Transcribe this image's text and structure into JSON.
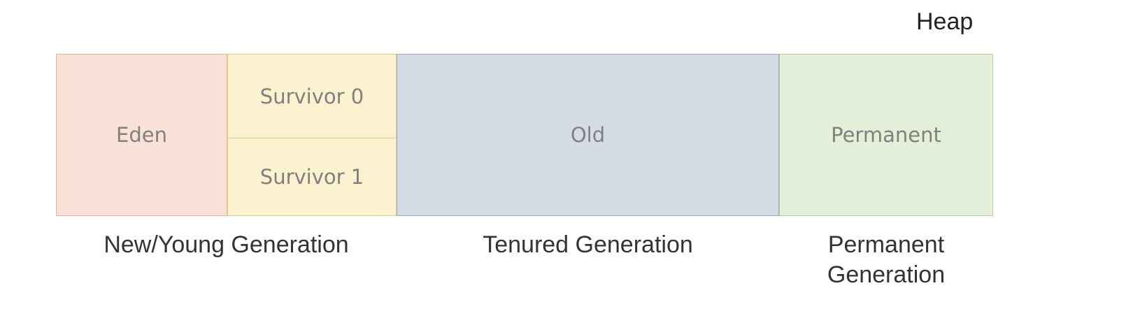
{
  "heap": {
    "title": "Heap"
  },
  "regions": {
    "eden": {
      "label": "Eden",
      "fill": "#F8E2D8",
      "border": "#E8B5A2"
    },
    "survivor_0": {
      "label": "Survivor 0",
      "fill": "#FDF2D0",
      "border": "#E2CF8A"
    },
    "survivor_1": {
      "label": "Survivor 1",
      "fill": "#FDF2D0",
      "border": "#E2CF8A"
    },
    "old": {
      "label": "Old",
      "fill": "#D6DCE6",
      "border": "#9FA9B8"
    },
    "permanent": {
      "label": "Permanent",
      "fill": "#E3EFD9",
      "border": "#B8CFA6"
    }
  },
  "generations": {
    "young": "New/Young Generation",
    "tenured": "Tenured Generation",
    "permanent": "Permanent\nGeneration"
  }
}
